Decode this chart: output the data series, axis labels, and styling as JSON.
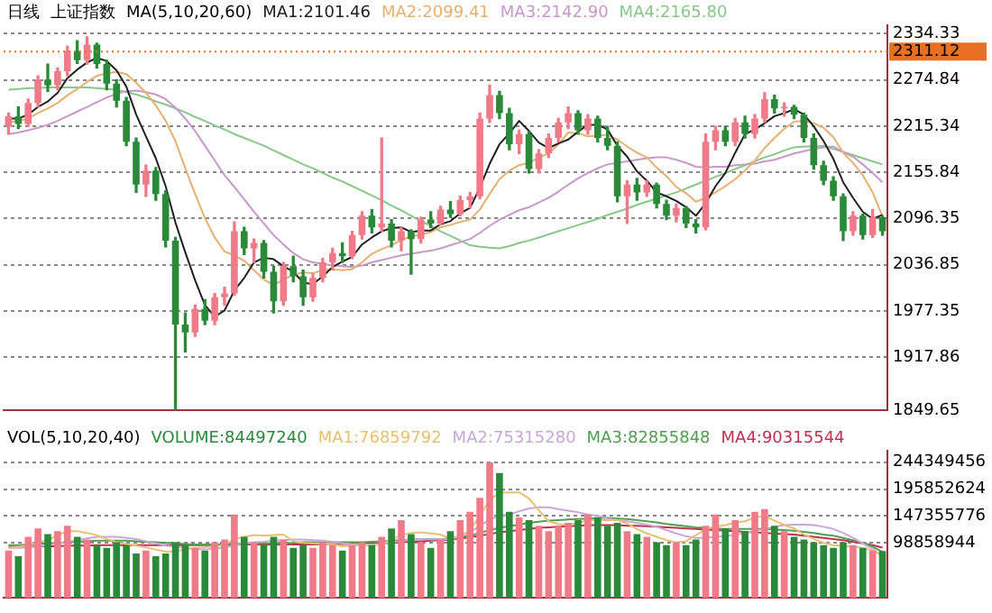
{
  "chart_data": [
    {
      "type": "candlestick",
      "title": "日线",
      "subtitle": "上证指数",
      "legend_title": "MA(5,10,20,60)",
      "categories": [
        null,
        null,
        null,
        null,
        null,
        null,
        null,
        null,
        null,
        null,
        null,
        null,
        null,
        null,
        null,
        null,
        null,
        null,
        null,
        null,
        null,
        null,
        null,
        null,
        null,
        null,
        null,
        null,
        null,
        null,
        null,
        null,
        null,
        null,
        null,
        null,
        null,
        null,
        null,
        null,
        null,
        null,
        null,
        null,
        null,
        null,
        null,
        null,
        null,
        null,
        null,
        null,
        null,
        null,
        null,
        null,
        null,
        null,
        null,
        null,
        null,
        null,
        null,
        null,
        null,
        null,
        null,
        null,
        null,
        null,
        null,
        null,
        null,
        null,
        null,
        null,
        null,
        null,
        null,
        null,
        null,
        null,
        null,
        null,
        null,
        null,
        null,
        null,
        null,
        null
      ],
      "ohlc": [
        [
          2215,
          2232,
          2205,
          2228
        ],
        [
          2228,
          2240,
          2212,
          2218
        ],
        [
          2218,
          2250,
          2215,
          2245
        ],
        [
          2245,
          2280,
          2240,
          2275
        ],
        [
          2275,
          2295,
          2260,
          2268
        ],
        [
          2268,
          2290,
          2262,
          2286
        ],
        [
          2286,
          2318,
          2280,
          2312
        ],
        [
          2312,
          2325,
          2296,
          2300
        ],
        [
          2300,
          2330,
          2295,
          2320
        ],
        [
          2320,
          2322,
          2290,
          2295
        ],
        [
          2295,
          2300,
          2262,
          2270
        ],
        [
          2270,
          2275,
          2240,
          2248
        ],
        [
          2248,
          2252,
          2190,
          2195
        ],
        [
          2195,
          2200,
          2130,
          2140
        ],
        [
          2140,
          2165,
          2125,
          2158
        ],
        [
          2158,
          2162,
          2120,
          2128
        ],
        [
          2128,
          2132,
          2060,
          2068
        ],
        [
          2068,
          2072,
          1850,
          1960
        ],
        [
          1960,
          1975,
          1925,
          1950
        ],
        [
          1950,
          1985,
          1945,
          1980
        ],
        [
          1980,
          1992,
          1960,
          1965
        ],
        [
          1965,
          2000,
          1960,
          1995
        ],
        [
          1995,
          2008,
          1985,
          2000
        ],
        [
          2000,
          2092,
          1998,
          2080
        ],
        [
          2080,
          2085,
          2050,
          2058
        ],
        [
          2058,
          2070,
          2040,
          2065
        ],
        [
          2065,
          2068,
          2020,
          2028
        ],
        [
          2028,
          2035,
          1975,
          1990
        ],
        [
          1990,
          2040,
          1985,
          2035
        ],
        [
          2035,
          2048,
          2015,
          2022
        ],
        [
          2022,
          2030,
          1985,
          1995
        ],
        [
          1995,
          2025,
          1990,
          2020
        ],
        [
          2020,
          2045,
          2015,
          2040
        ],
        [
          2040,
          2058,
          2030,
          2052
        ],
        [
          2052,
          2065,
          2040,
          2048
        ],
        [
          2048,
          2080,
          2045,
          2075
        ],
        [
          2075,
          2105,
          2070,
          2100
        ],
        [
          2100,
          2108,
          2078,
          2085
        ],
        [
          2085,
          2200,
          2080,
          2090
        ],
        [
          2090,
          2095,
          2060,
          2068
        ],
        [
          2068,
          2085,
          2055,
          2080
        ],
        [
          2080,
          2082,
          2025,
          2070
        ],
        [
          2070,
          2098,
          2065,
          2095
        ],
        [
          2095,
          2105,
          2085,
          2090
        ],
        [
          2090,
          2112,
          2088,
          2108
        ],
        [
          2108,
          2118,
          2098,
          2102
        ],
        [
          2102,
          2125,
          2100,
          2120
        ],
        [
          2120,
          2130,
          2110,
          2125
        ],
        [
          2125,
          2232,
          2122,
          2225
        ],
        [
          2225,
          2268,
          2220,
          2255
        ],
        [
          2255,
          2260,
          2225,
          2232
        ],
        [
          2232,
          2238,
          2185,
          2192
        ],
        [
          2192,
          2210,
          2180,
          2205
        ],
        [
          2205,
          2208,
          2155,
          2160
        ],
        [
          2160,
          2185,
          2155,
          2180
        ],
        [
          2180,
          2205,
          2175,
          2200
        ],
        [
          2200,
          2225,
          2195,
          2220
        ],
        [
          2220,
          2240,
          2212,
          2232
        ],
        [
          2232,
          2235,
          2205,
          2210
        ],
        [
          2210,
          2230,
          2205,
          2225
        ],
        [
          2225,
          2228,
          2195,
          2200
        ],
        [
          2200,
          2215,
          2185,
          2190
        ],
        [
          2190,
          2195,
          2118,
          2125
        ],
        [
          2125,
          2145,
          2090,
          2140
        ],
        [
          2140,
          2148,
          2120,
          2130
        ],
        [
          2130,
          2145,
          2125,
          2140
        ],
        [
          2140,
          2142,
          2110,
          2115
        ],
        [
          2115,
          2120,
          2095,
          2100
        ],
        [
          2100,
          2115,
          2092,
          2110
        ],
        [
          2110,
          2112,
          2085,
          2090
        ],
        [
          2090,
          2095,
          2078,
          2085
        ],
        [
          2085,
          2205,
          2082,
          2195
        ],
        [
          2195,
          2215,
          2185,
          2210
        ],
        [
          2210,
          2215,
          2190,
          2195
        ],
        [
          2195,
          2225,
          2190,
          2220
        ],
        [
          2220,
          2228,
          2200,
          2205
        ],
        [
          2205,
          2230,
          2200,
          2225
        ],
        [
          2225,
          2258,
          2220,
          2250
        ],
        [
          2250,
          2255,
          2232,
          2238
        ],
        [
          2238,
          2245,
          2228,
          2240
        ],
        [
          2240,
          2242,
          2225,
          2230
        ],
        [
          2230,
          2232,
          2195,
          2200
        ],
        [
          2200,
          2205,
          2160,
          2165
        ],
        [
          2165,
          2170,
          2140,
          2145
        ],
        [
          2145,
          2150,
          2120,
          2125
        ],
        [
          2125,
          2128,
          2068,
          2080
        ],
        [
          2080,
          2105,
          2075,
          2100
        ],
        [
          2100,
          2102,
          2070,
          2075
        ],
        [
          2075,
          2108,
          2072,
          2098
        ],
        [
          2098,
          2100,
          2075,
          2080
        ]
      ],
      "colors": [
        "#f07a88",
        "#2a8a3a",
        "#f07a88",
        "#f07a88",
        "#2a8a3a",
        "#f07a88",
        "#f07a88",
        "#2a8a3a",
        "#f07a88",
        "#2a8a3a",
        "#2a8a3a",
        "#2a8a3a",
        "#2a8a3a",
        "#2a8a3a",
        "#f07a88",
        "#2a8a3a",
        "#2a8a3a",
        "#2a8a3a",
        "#2a8a3a",
        "#f07a88",
        "#2a8a3a",
        "#f07a88",
        "#f07a88",
        "#f07a88",
        "#2a8a3a",
        "#f07a88",
        "#2a8a3a",
        "#2a8a3a",
        "#f07a88",
        "#2a8a3a",
        "#2a8a3a",
        "#f07a88",
        "#f07a88",
        "#f07a88",
        "#2a8a3a",
        "#f07a88",
        "#f07a88",
        "#2a8a3a",
        "#f07a88",
        "#2a8a3a",
        "#f07a88",
        "#2a8a3a",
        "#f07a88",
        "#2a8a3a",
        "#f07a88",
        "#2a8a3a",
        "#f07a88",
        "#f07a88",
        "#f07a88",
        "#f07a88",
        "#2a8a3a",
        "#2a8a3a",
        "#f07a88",
        "#2a8a3a",
        "#f07a88",
        "#f07a88",
        "#f07a88",
        "#f07a88",
        "#2a8a3a",
        "#f07a88",
        "#2a8a3a",
        "#2a8a3a",
        "#2a8a3a",
        "#f07a88",
        "#2a8a3a",
        "#f07a88",
        "#2a8a3a",
        "#2a8a3a",
        "#f07a88",
        "#2a8a3a",
        "#2a8a3a",
        "#f07a88",
        "#f07a88",
        "#2a8a3a",
        "#f07a88",
        "#2a8a3a",
        "#f07a88",
        "#f07a88",
        "#2a8a3a",
        "#f07a88",
        "#2a8a3a",
        "#2a8a3a",
        "#2a8a3a",
        "#2a8a3a",
        "#2a8a3a",
        "#2a8a3a",
        "#f07a88",
        "#2a8a3a",
        "#f07a88",
        "#2a8a3a"
      ],
      "series": [
        {
          "type": "line",
          "name": "MA1:2101.46",
          "color": "#202020",
          "values": [
            2225,
            2225,
            2230,
            2240,
            2247,
            2258,
            2277,
            2288,
            2297,
            2303,
            2299,
            2287,
            2266,
            2230,
            2202,
            2174,
            2138,
            2091,
            2053,
            2017,
            1985,
            1970,
            1978,
            2004,
            2020,
            2040,
            2046,
            2044,
            2035,
            2028,
            2014,
            2012,
            2022,
            2034,
            2041,
            2047,
            2063,
            2072,
            2080,
            2084,
            2085,
            2079,
            2081,
            2081,
            2089,
            2093,
            2103,
            2110,
            2136,
            2167,
            2192,
            2206,
            2222,
            2209,
            2194,
            2187,
            2193,
            2198,
            2208,
            2217,
            2217,
            2211,
            2190,
            2176,
            2157,
            2145,
            2130,
            2125,
            2119,
            2111,
            2100,
            2116,
            2138,
            2155,
            2181,
            2205,
            2211,
            2219,
            2228,
            2232,
            2237,
            2230,
            2215,
            2196,
            2173,
            2143,
            2123,
            2105,
            2096,
            2101
          ]
        },
        {
          "type": "line",
          "name": "MA2:2099.41",
          "color": "#e8b070",
          "values": [
            2220,
            2222,
            2225,
            2232,
            2238,
            2245,
            2255,
            2263,
            2272,
            2280,
            2283,
            2285,
            2282,
            2271,
            2258,
            2242,
            2222,
            2196,
            2161,
            2128,
            2097,
            2072,
            2054,
            2049,
            2042,
            2030,
            2018,
            2011,
            2018,
            2024,
            2027,
            2026,
            2030,
            2031,
            2030,
            2031,
            2040,
            2051,
            2057,
            2062,
            2069,
            2073,
            2076,
            2079,
            2085,
            2088,
            2092,
            2095,
            2108,
            2128,
            2147,
            2158,
            2165,
            2168,
            2175,
            2180,
            2192,
            2207,
            2206,
            2202,
            2203,
            2204,
            2198,
            2189,
            2181,
            2175,
            2162,
            2151,
            2137,
            2129,
            2118,
            2123,
            2130,
            2138,
            2147,
            2158,
            2171,
            2187,
            2200,
            2212,
            2221,
            2222,
            2219,
            2213,
            2201,
            2181,
            2168,
            2152,
            2130,
            2099
          ]
        },
        {
          "type": "line",
          "name": "MA3:2142.90",
          "color": "#c898c8",
          "values": [
            2205,
            2207,
            2210,
            2213,
            2217,
            2222,
            2228,
            2234,
            2240,
            2246,
            2252,
            2257,
            2260,
            2261,
            2259,
            2256,
            2250,
            2239,
            2225,
            2209,
            2190,
            2171,
            2152,
            2137,
            2121,
            2105,
            2090,
            2075,
            2063,
            2052,
            2044,
            2040,
            2038,
            2036,
            2035,
            2034,
            2036,
            2040,
            2043,
            2046,
            2049,
            2051,
            2053,
            2055,
            2058,
            2062,
            2066,
            2070,
            2078,
            2087,
            2095,
            2101,
            2107,
            2111,
            2117,
            2123,
            2131,
            2140,
            2148,
            2155,
            2161,
            2166,
            2168,
            2170,
            2172,
            2174,
            2175,
            2175,
            2172,
            2168,
            2163,
            2162,
            2163,
            2163,
            2165,
            2166,
            2167,
            2170,
            2172,
            2176,
            2180,
            2183,
            2186,
            2188,
            2189,
            2182,
            2176,
            2166,
            2155,
            2143
          ]
        },
        {
          "type": "line",
          "name": "MA4:2165.80",
          "color": "#88c888",
          "values": [
            2262,
            2263,
            2264,
            2264,
            2265,
            2265,
            2265,
            2265,
            2265,
            2264,
            2263,
            2262,
            2259,
            2256,
            2252,
            2247,
            2243,
            2238,
            2233,
            2227,
            2222,
            2216,
            2211,
            2205,
            2200,
            2195,
            2190,
            2184,
            2178,
            2172,
            2166,
            2161,
            2155,
            2149,
            2144,
            2138,
            2132,
            2126,
            2120,
            2113,
            2107,
            2100,
            2093,
            2087,
            2080,
            2074,
            2068,
            2062,
            2060,
            2059,
            2058,
            2061,
            2065,
            2068,
            2072,
            2076,
            2080,
            2084,
            2088,
            2092,
            2096,
            2101,
            2105,
            2109,
            2114,
            2118,
            2122,
            2126,
            2130,
            2135,
            2140,
            2145,
            2150,
            2155,
            2160,
            2165,
            2170,
            2175,
            2179,
            2184,
            2188,
            2189,
            2189,
            2190,
            2186,
            2182,
            2178,
            2174,
            2170,
            2166
          ]
        }
      ],
      "ylim": [
        1849.65,
        2345
      ],
      "yticks": [
        1849.65,
        1917.86,
        1977.35,
        2036.85,
        2096.35,
        2155.84,
        2215.34,
        2274.84,
        2334.33
      ],
      "ref_lines": [
        {
          "axis": "y",
          "value": 2311.12,
          "label": "2311.12",
          "color": "#e87020"
        }
      ],
      "grid": "y",
      "legend": "top",
      "tick_labels": "y"
    },
    {
      "type": "bar",
      "title": "VOL(5,10,20,40)",
      "categories": [
        null,
        null,
        null,
        null,
        null,
        null,
        null,
        null,
        null,
        null,
        null,
        null,
        null,
        null,
        null,
        null,
        null,
        null,
        null,
        null,
        null,
        null,
        null,
        null,
        null,
        null,
        null,
        null,
        null,
        null,
        null,
        null,
        null,
        null,
        null,
        null,
        null,
        null,
        null,
        null,
        null,
        null,
        null,
        null,
        null,
        null,
        null,
        null,
        null,
        null,
        null,
        null,
        null,
        null,
        null,
        null,
        null,
        null,
        null,
        null,
        null,
        null,
        null,
        null,
        null,
        null,
        null,
        null,
        null,
        null,
        null,
        null,
        null,
        null,
        null,
        null,
        null,
        null,
        null,
        null,
        null,
        null,
        null,
        null,
        null,
        null,
        null,
        null,
        null,
        null
      ],
      "series": [
        {
          "type": "bar",
          "name": "VOLUME:84497240",
          "colors": [
            "#f07a88",
            "#2a8a3a",
            "#f07a88",
            "#f07a88",
            "#2a8a3a",
            "#f07a88",
            "#f07a88",
            "#2a8a3a",
            "#f07a88",
            "#2a8a3a",
            "#2a8a3a",
            "#2a8a3a",
            "#2a8a3a",
            "#2a8a3a",
            "#f07a88",
            "#2a8a3a",
            "#2a8a3a",
            "#2a8a3a",
            "#2a8a3a",
            "#f07a88",
            "#2a8a3a",
            "#f07a88",
            "#f07a88",
            "#f07a88",
            "#2a8a3a",
            "#f07a88",
            "#2a8a3a",
            "#2a8a3a",
            "#f07a88",
            "#2a8a3a",
            "#2a8a3a",
            "#f07a88",
            "#f07a88",
            "#f07a88",
            "#2a8a3a",
            "#f07a88",
            "#f07a88",
            "#2a8a3a",
            "#f07a88",
            "#2a8a3a",
            "#f07a88",
            "#2a8a3a",
            "#f07a88",
            "#2a8a3a",
            "#f07a88",
            "#2a8a3a",
            "#f07a88",
            "#f07a88",
            "#f07a88",
            "#f07a88",
            "#2a8a3a",
            "#2a8a3a",
            "#f07a88",
            "#2a8a3a",
            "#f07a88",
            "#f07a88",
            "#f07a88",
            "#f07a88",
            "#2a8a3a",
            "#f07a88",
            "#2a8a3a",
            "#2a8a3a",
            "#2a8a3a",
            "#f07a88",
            "#2a8a3a",
            "#f07a88",
            "#2a8a3a",
            "#2a8a3a",
            "#f07a88",
            "#2a8a3a",
            "#2a8a3a",
            "#f07a88",
            "#f07a88",
            "#2a8a3a",
            "#f07a88",
            "#2a8a3a",
            "#f07a88",
            "#f07a88",
            "#2a8a3a",
            "#f07a88",
            "#2a8a3a",
            "#2a8a3a",
            "#2a8a3a",
            "#2a8a3a",
            "#2a8a3a",
            "#2a8a3a",
            "#f07a88",
            "#2a8a3a",
            "#f07a88",
            "#2a8a3a"
          ],
          "values": [
            85000000,
            75000000,
            110000000,
            125000000,
            115000000,
            120000000,
            130000000,
            110000000,
            105000000,
            95000000,
            90000000,
            100000000,
            95000000,
            80000000,
            85000000,
            75000000,
            80000000,
            100000000,
            95000000,
            90000000,
            85000000,
            100000000,
            105000000,
            150000000,
            110000000,
            100000000,
            95000000,
            110000000,
            105000000,
            90000000,
            95000000,
            90000000,
            100000000,
            95000000,
            85000000,
            95000000,
            100000000,
            95000000,
            110000000,
            125000000,
            140000000,
            115000000,
            100000000,
            90000000,
            105000000,
            120000000,
            140000000,
            155000000,
            180000000,
            244000000,
            225000000,
            155000000,
            145000000,
            140000000,
            130000000,
            120000000,
            130000000,
            135000000,
            140000000,
            150000000,
            145000000,
            130000000,
            135000000,
            120000000,
            115000000,
            110000000,
            100000000,
            95000000,
            100000000,
            95000000,
            105000000,
            130000000,
            150000000,
            125000000,
            140000000,
            120000000,
            155000000,
            160000000,
            130000000,
            120000000,
            110000000,
            105000000,
            100000000,
            95000000,
            90000000,
            100000000,
            95000000,
            90000000,
            85000000,
            84500000
          ]
        },
        {
          "type": "line",
          "name": "MA1:76859792",
          "color": "#e8c070",
          "values": [
            90000000,
            92000000,
            95000000,
            100000000,
            104000000,
            113000000,
            120000000,
            120000000,
            117000000,
            113000000,
            106000000,
            100000000,
            97000000,
            94000000,
            91000000,
            87000000,
            83000000,
            84000000,
            87000000,
            90000000,
            91000000,
            93000000,
            95000000,
            106000000,
            110000000,
            113000000,
            112000000,
            113000000,
            114000000,
            102000000,
            99000000,
            98000000,
            98000000,
            97000000,
            93000000,
            94000000,
            95000000,
            94000000,
            97000000,
            105000000,
            113000000,
            117000000,
            118000000,
            116000000,
            114000000,
            106000000,
            111000000,
            122000000,
            148000000,
            177000000,
            189000000,
            190000000,
            190000000,
            179000000,
            158000000,
            138000000,
            133000000,
            131000000,
            135000000,
            140000000,
            140000000,
            140000000,
            140000000,
            134000000,
            124000000,
            116000000,
            110000000,
            104000000,
            100000000,
            102000000,
            113000000,
            123000000,
            129000000,
            131000000,
            136000000,
            138000000,
            145000000,
            148000000,
            139000000,
            131000000,
            125000000,
            114000000,
            106000000,
            99000000,
            95000000,
            94000000,
            92000000,
            90000000,
            85000000,
            76900000
          ]
        },
        {
          "type": "line",
          "name": "MA2:75315280",
          "color": "#c8a8d8",
          "values": [
            90000000,
            90000000,
            91000000,
            93000000,
            95000000,
            98000000,
            101000000,
            104000000,
            107000000,
            110000000,
            110000000,
            110000000,
            108000000,
            106000000,
            102000000,
            98000000,
            94000000,
            92000000,
            90000000,
            88000000,
            87000000,
            89000000,
            90000000,
            95000000,
            98000000,
            100000000,
            101000000,
            103000000,
            104000000,
            105000000,
            105000000,
            104000000,
            103000000,
            101000000,
            98000000,
            96000000,
            96000000,
            96000000,
            97000000,
            100000000,
            103000000,
            105000000,
            106000000,
            105000000,
            106000000,
            106000000,
            112000000,
            118000000,
            130000000,
            141000000,
            148000000,
            150000000,
            156000000,
            161000000,
            163000000,
            163000000,
            160000000,
            157000000,
            154000000,
            150000000,
            148000000,
            143000000,
            140000000,
            138000000,
            135000000,
            132000000,
            128000000,
            122000000,
            116000000,
            111000000,
            108000000,
            108000000,
            110000000,
            111000000,
            113000000,
            117000000,
            121000000,
            124000000,
            128000000,
            131000000,
            132000000,
            132000000,
            131000000,
            128000000,
            124000000,
            117000000,
            108000000,
            98000000,
            88000000,
            75300000
          ]
        },
        {
          "type": "line",
          "name": "MA3:82855848",
          "color": "#50a050",
          "values": [
            95000000,
            95000000,
            96000000,
            97000000,
            98000000,
            99000000,
            100000000,
            101000000,
            102000000,
            103000000,
            103000000,
            103000000,
            103000000,
            102000000,
            101000000,
            100000000,
            99000000,
            98000000,
            97000000,
            96000000,
            96000000,
            96000000,
            96000000,
            97000000,
            98000000,
            98000000,
            98000000,
            98000000,
            98000000,
            99000000,
            100000000,
            100000000,
            100000000,
            100000000,
            100000000,
            100000000,
            100000000,
            101000000,
            102000000,
            103000000,
            104000000,
            105000000,
            106000000,
            106000000,
            106000000,
            107000000,
            109000000,
            112000000,
            117000000,
            122000000,
            126000000,
            129000000,
            132000000,
            135000000,
            137000000,
            139000000,
            140000000,
            141000000,
            142000000,
            143000000,
            144000000,
            144000000,
            143000000,
            142000000,
            140000000,
            138000000,
            136000000,
            133000000,
            131000000,
            129000000,
            127000000,
            126000000,
            125000000,
            124000000,
            124000000,
            124000000,
            124000000,
            124000000,
            123000000,
            122000000,
            121000000,
            119000000,
            117000000,
            114000000,
            112000000,
            108000000,
            104000000,
            99000000,
            92000000,
            82900000
          ]
        },
        {
          "type": "line",
          "name": "MA4:90315544",
          "color": "#c03050",
          "values": [
            92000000,
            92000000,
            92000000,
            93000000,
            93000000,
            93000000,
            94000000,
            94000000,
            94000000,
            95000000,
            95000000,
            95000000,
            95000000,
            95000000,
            95000000,
            95000000,
            95000000,
            95000000,
            95000000,
            95000000,
            95000000,
            95000000,
            95000000,
            96000000,
            96000000,
            96000000,
            96000000,
            96000000,
            96000000,
            96000000,
            96000000,
            96000000,
            97000000,
            97000000,
            97000000,
            97000000,
            98000000,
            98000000,
            98000000,
            99000000,
            100000000,
            101000000,
            102000000,
            103000000,
            104000000,
            105000000,
            107000000,
            109000000,
            112000000,
            115000000,
            118000000,
            120000000,
            122000000,
            124000000,
            126000000,
            127000000,
            128000000,
            129000000,
            130000000,
            131000000,
            131000000,
            131000000,
            131000000,
            130000000,
            130000000,
            129000000,
            128000000,
            127000000,
            126000000,
            125000000,
            124000000,
            123000000,
            122000000,
            121000000,
            120000000,
            119000000,
            118000000,
            117000000,
            116000000,
            115000000,
            114000000,
            112000000,
            110000000,
            108000000,
            106000000,
            104000000,
            101000000,
            98000000,
            95000000,
            90300000
          ]
        }
      ],
      "ylim": [
        0,
        265000000
      ],
      "yticks": [
        98858944,
        147355776,
        195852624,
        244349456
      ],
      "grid": "y",
      "legend": "top",
      "tick_labels": "y"
    }
  ]
}
